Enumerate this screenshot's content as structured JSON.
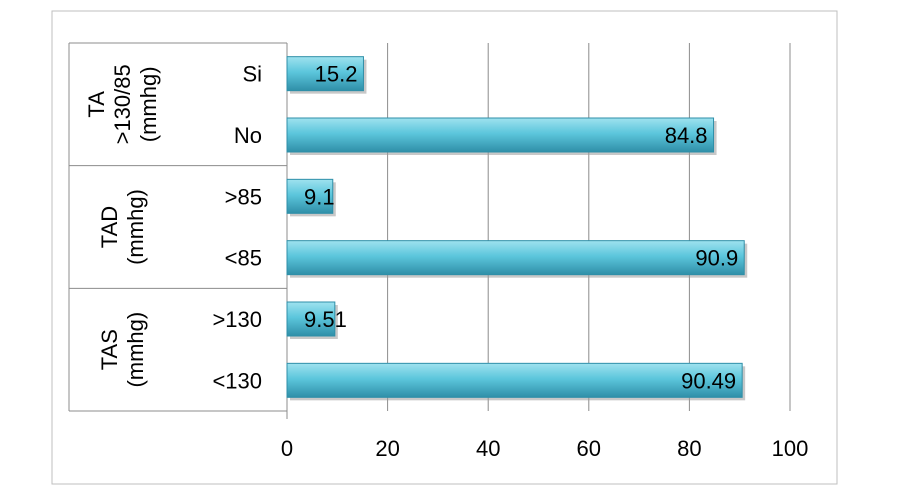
{
  "colors": {
    "bar_fill": "#5cc6dc",
    "bar_highlight": "#9fe2ef",
    "bar_shadow": "#2f8fa8",
    "grid": "#8c8c8c",
    "frame": "#bfbfbf"
  },
  "chart_data": {
    "type": "bar",
    "orientation": "horizontal",
    "xlim": [
      0,
      100
    ],
    "xticks": [
      "0",
      "20",
      "40",
      "60",
      "80",
      "100"
    ],
    "grid": true,
    "legend": "none",
    "groups": [
      {
        "label_lines": [
          "TA",
          ">130/85",
          "(mmhg)"
        ],
        "items": [
          {
            "label": "Si",
            "value": 15.2,
            "value_label": "15.2"
          },
          {
            "label": "No",
            "value": 84.8,
            "value_label": "84.8"
          }
        ]
      },
      {
        "label_lines": [
          "TAD",
          "(mmhg)"
        ],
        "items": [
          {
            "label": ">85",
            "value": 9.1,
            "value_label": "9.1"
          },
          {
            "label": "<85",
            "value": 90.9,
            "value_label": "90.9"
          }
        ]
      },
      {
        "label_lines": [
          "TAS",
          "(mmhg)"
        ],
        "items": [
          {
            "label": ">130",
            "value": 9.51,
            "value_label": "9.51"
          },
          {
            "label": "<130",
            "value": 90.49,
            "value_label": "90.49"
          }
        ]
      }
    ]
  }
}
